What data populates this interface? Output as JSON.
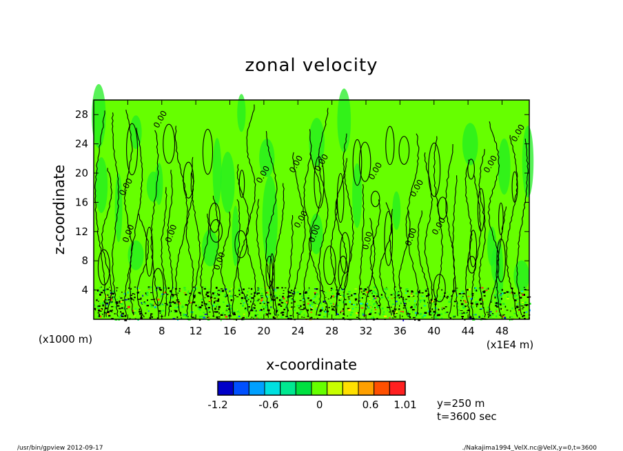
{
  "chart_data": {
    "type": "heatmap",
    "title": "zonal velocity",
    "xlabel": "x-coordinate",
    "ylabel": "z-coordinate",
    "x_unit_left": "(x1000 m)",
    "x_unit_right": "(x1E4 m)",
    "xlim": [
      0,
      51.2
    ],
    "ylim": [
      0,
      30
    ],
    "x_ticks": [
      4,
      8,
      12,
      16,
      20,
      24,
      28,
      32,
      36,
      40,
      44,
      48
    ],
    "y_ticks": [
      4,
      8,
      12,
      16,
      20,
      24,
      28
    ],
    "contour_label": "0.00",
    "dominant_value": 0.1,
    "colorbar": {
      "levels": [
        -1.2,
        -1.0,
        -0.8,
        -0.6,
        -0.4,
        -0.2,
        0,
        0.2,
        0.4,
        0.6,
        0.8,
        1.01
      ],
      "colors": [
        "#0000c8",
        "#0050ff",
        "#00a0ff",
        "#00e0e0",
        "#00e890",
        "#00e040",
        "#66ff00",
        "#c8ff00",
        "#ffe000",
        "#ffa000",
        "#ff5000",
        "#ff2020"
      ],
      "tick_labels": [
        "-1.2",
        "-0.6",
        "0",
        "0.6",
        "1.01"
      ],
      "tick_values": [
        -1.2,
        -0.6,
        0,
        0.6,
        1.01
      ]
    },
    "annotations": [
      "y=250 m",
      "t=3600 sec"
    ]
  },
  "footer": {
    "left": "/usr/bin/gpview   2012-09-17",
    "right": "./Nakajima1994_VelX.nc@VelX,y=0,t=3600"
  },
  "colors": {
    "field": "#66ff00",
    "alt": "#22ee22",
    "contour": "#000000"
  }
}
